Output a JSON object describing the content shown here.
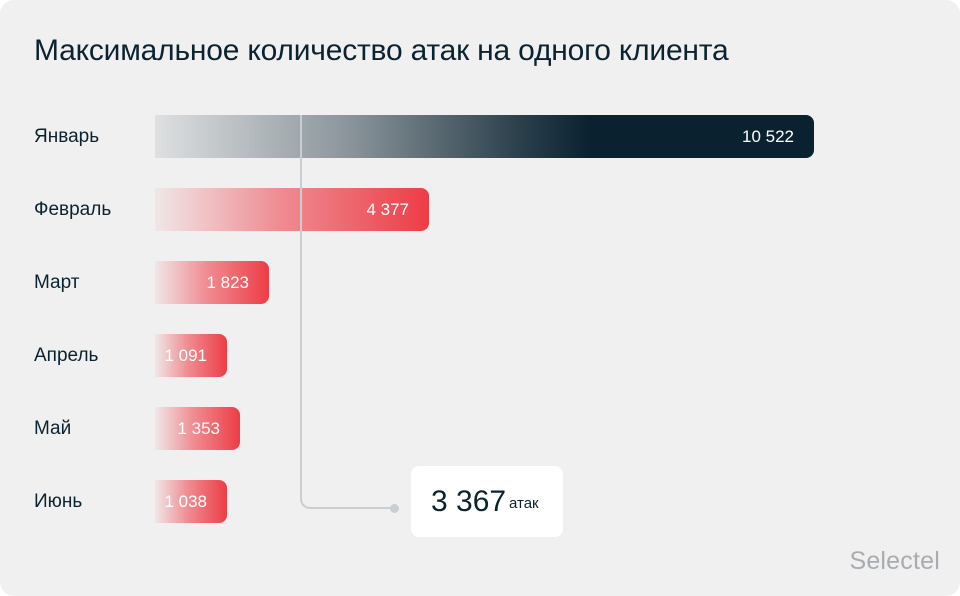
{
  "chart_data": {
    "type": "bar",
    "orientation": "horizontal",
    "title": "Максимальное количество атак на одного клиента",
    "categories": [
      "Январь",
      "Февраль",
      "Март",
      "Апрель",
      "Май",
      "Июнь"
    ],
    "values": [
      10522,
      4377,
      1823,
      1091,
      1353,
      1038
    ],
    "value_labels": [
      "10 522",
      "4 377",
      "1 823",
      "1 091",
      "1 353",
      "1 038"
    ],
    "highlight_category": "Январь",
    "colors": {
      "highlight": "#0a2230",
      "default": "#ee3c46",
      "reference_line": "#c9ced2"
    },
    "xlim": [
      0,
      10522
    ],
    "reference": {
      "value": 3367,
      "label": "3 367",
      "unit": "атак"
    },
    "grid": false
  },
  "brand": "Selectel"
}
